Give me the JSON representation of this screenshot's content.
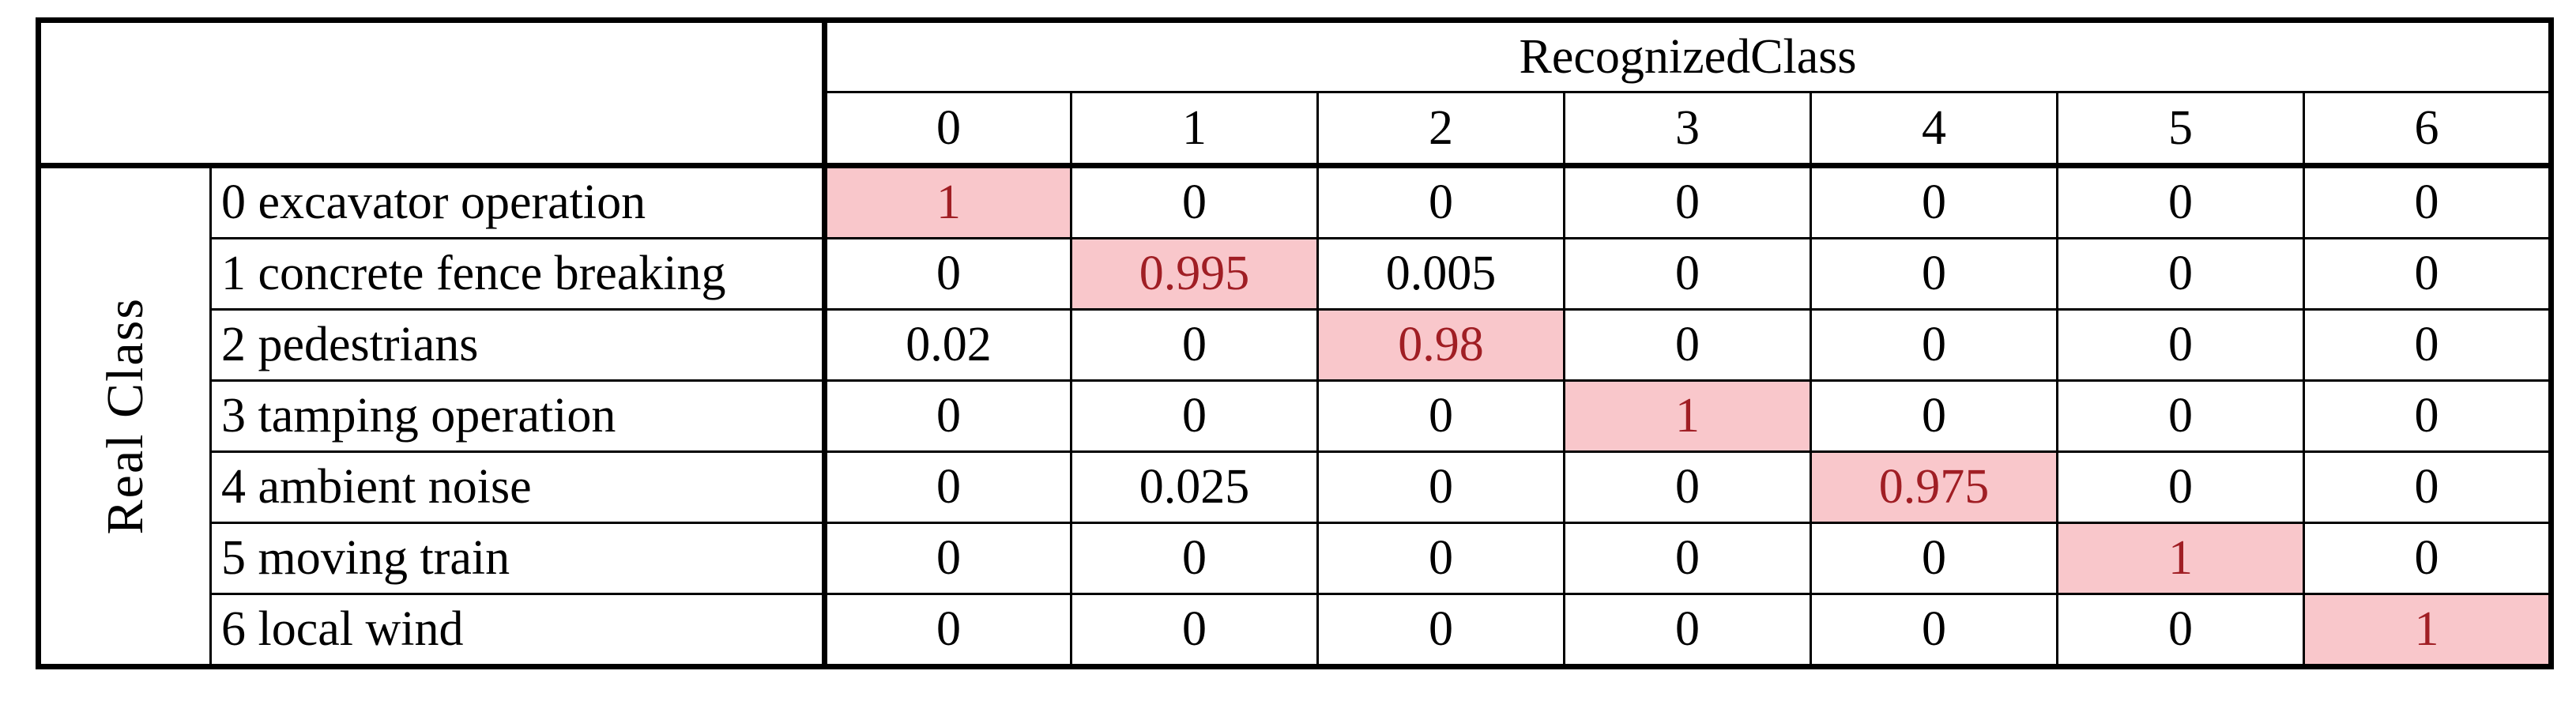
{
  "table": {
    "col_header_title": "RecognizedClass",
    "row_header_title": "Real Class",
    "recognized_classes": [
      "0",
      "1",
      "2",
      "3",
      "4",
      "5",
      "6"
    ],
    "rows": [
      {
        "label": "0 excavator operation",
        "values": [
          "1",
          "0",
          "0",
          "0",
          "0",
          "0",
          "0"
        ],
        "highlight_index": 0
      },
      {
        "label": "1 concrete fence breaking",
        "values": [
          "0",
          "0.995",
          "0.005",
          "0",
          "0",
          "0",
          "0"
        ],
        "highlight_index": 1
      },
      {
        "label": "2 pedestrians",
        "values": [
          "0.02",
          "0",
          "0.98",
          "0",
          "0",
          "0",
          "0"
        ],
        "highlight_index": 2
      },
      {
        "label": "3 tamping operation",
        "values": [
          "0",
          "0",
          "0",
          "1",
          "0",
          "0",
          "0"
        ],
        "highlight_index": 3
      },
      {
        "label": "4 ambient noise",
        "values": [
          "0",
          "0.025",
          "0",
          "0",
          "0.975",
          "0",
          "0"
        ],
        "highlight_index": 4
      },
      {
        "label": "5 moving train",
        "values": [
          "0",
          "0",
          "0",
          "0",
          "0",
          "1",
          "0"
        ],
        "highlight_index": 5
      },
      {
        "label": "6 local wind",
        "values": [
          "0",
          "0",
          "0",
          "0",
          "0",
          "0",
          "1"
        ],
        "highlight_index": 6
      }
    ],
    "colors": {
      "highlight_bg": "#f9c7cb",
      "highlight_text": "#a01e24",
      "text": "#000000",
      "border": "#000000",
      "background": "#ffffff"
    }
  },
  "chart_data": {
    "type": "heatmap",
    "title": "",
    "xlabel": "RecognizedClass",
    "ylabel": "Real Class",
    "x_categories": [
      "0",
      "1",
      "2",
      "3",
      "4",
      "5",
      "6"
    ],
    "y_categories": [
      "0 excavator operation",
      "1 concrete fence breaking",
      "2 pedestrians",
      "3 tamping operation",
      "4 ambient noise",
      "5 moving train",
      "6 local wind"
    ],
    "matrix": [
      [
        1,
        0,
        0,
        0,
        0,
        0,
        0
      ],
      [
        0,
        0.995,
        0.005,
        0,
        0,
        0,
        0
      ],
      [
        0.02,
        0,
        0.98,
        0,
        0,
        0,
        0
      ],
      [
        0,
        0,
        0,
        1,
        0,
        0,
        0
      ],
      [
        0,
        0.025,
        0,
        0,
        0.975,
        0,
        0
      ],
      [
        0,
        0,
        0,
        0,
        0,
        1,
        0
      ],
      [
        0,
        0,
        0,
        0,
        0,
        0,
        1
      ]
    ],
    "highlighted_cells": "diagonal",
    "legend_position": "none",
    "grid": true
  }
}
